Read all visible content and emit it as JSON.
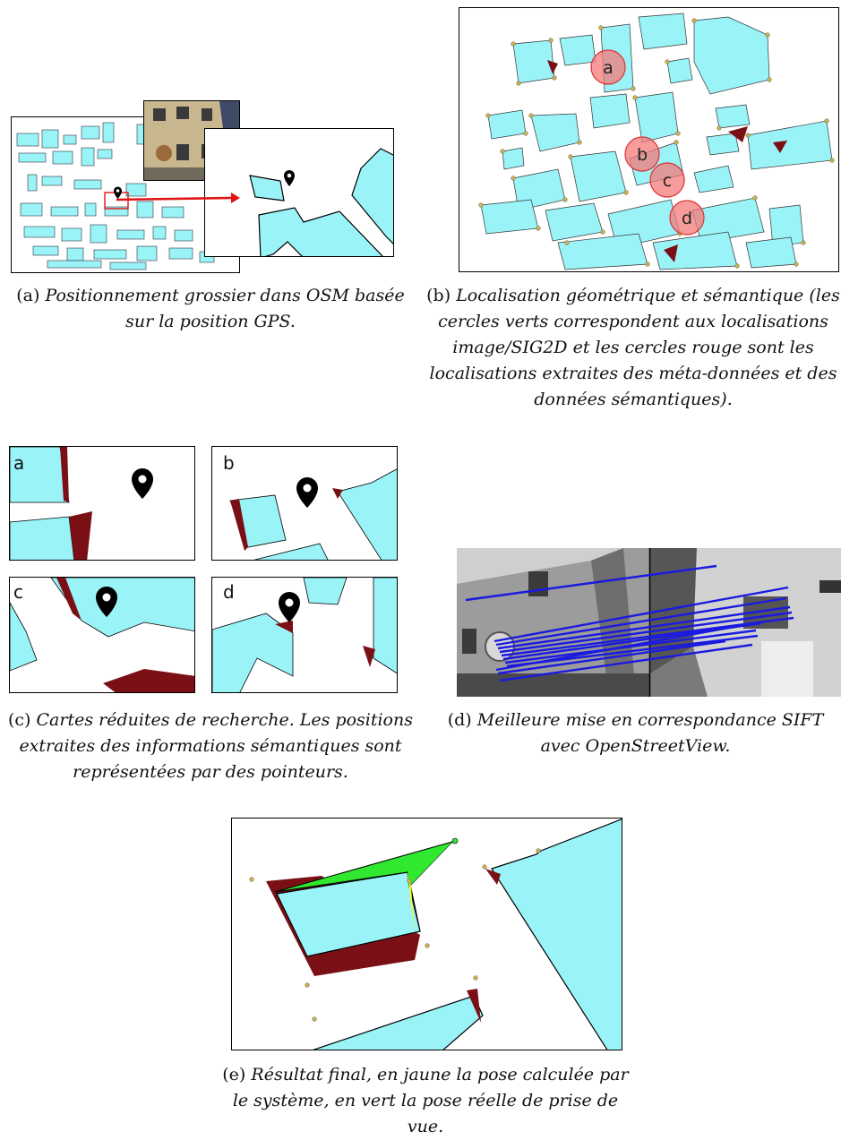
{
  "figures": {
    "a": {
      "label": "(a)",
      "caption": "Positionnement grossier dans OSM basée sur la position GPS."
    },
    "b": {
      "label": "(b)",
      "caption": "Localisation géométrique et sémantique (les cercles verts correspondent aux localisations image/SIG2D et les cercles rouge sont les localisations extraites des méta-données et des données sémantiques).",
      "markers": [
        "a",
        "b",
        "c",
        "d"
      ]
    },
    "c": {
      "label": "(c)",
      "caption": "Cartes réduites de recherche. Les positions extraites des informations sémantiques sont représentées par des pointeurs.",
      "maps": [
        "a",
        "b",
        "c",
        "d"
      ]
    },
    "d": {
      "label": "(d)",
      "caption": "Meilleure mise en correspondance SIFT avec OpenStreetView."
    },
    "e": {
      "label": "(e)",
      "caption": "Résultat final, en jaune la pose calculée par le système, en vert la pose réelle de prise de vue."
    }
  },
  "colors": {
    "building": "#9af3f7",
    "dark_red": "#7a1016",
    "green": "#2fe82f",
    "yellow": "#ffff00",
    "red_circle": "#f47a7a",
    "arrow": "#e01515",
    "match_line": "#1a1ae0",
    "vertex": "#b9a340"
  }
}
